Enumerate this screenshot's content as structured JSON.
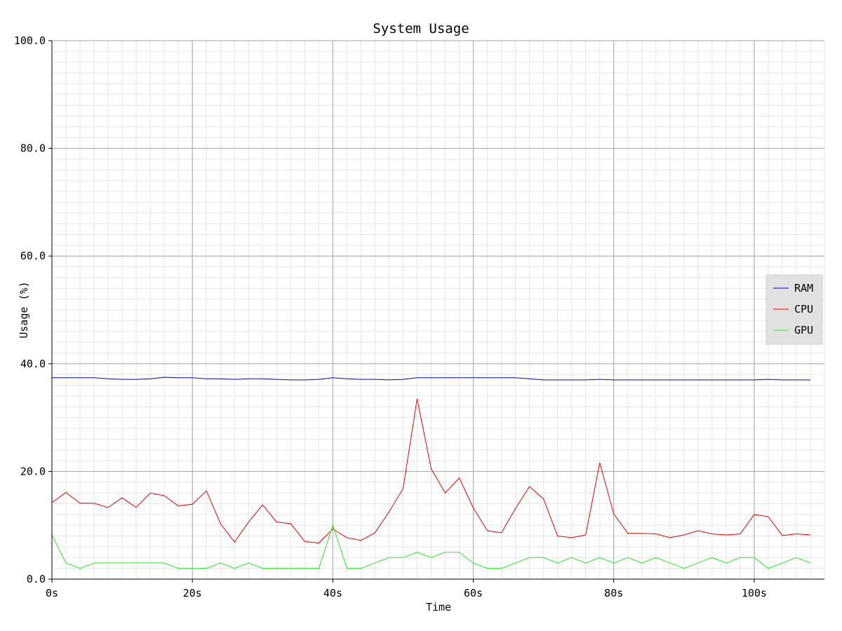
{
  "chart_data": {
    "type": "line",
    "title": "System Usage",
    "xlabel": "Time",
    "ylabel": "Usage (%)",
    "xlim": [
      0,
      110
    ],
    "ylim": [
      0,
      100
    ],
    "x_ticks": [
      0,
      20,
      40,
      60,
      80,
      100
    ],
    "x_tick_labels": [
      "0s",
      "20s",
      "40s",
      "60s",
      "80s",
      "100s"
    ],
    "y_ticks": [
      0,
      20,
      40,
      60,
      80,
      100
    ],
    "y_tick_labels": [
      "0.0",
      "20.0",
      "40.0",
      "60.0",
      "80.0",
      "100.0"
    ],
    "grid": true,
    "legend_position": "right",
    "x": [
      0,
      2,
      4,
      6,
      8,
      10,
      12,
      14,
      16,
      18,
      20,
      22,
      24,
      26,
      28,
      30,
      32,
      34,
      36,
      38,
      40,
      42,
      44,
      46,
      48,
      50,
      52,
      54,
      56,
      58,
      60,
      62,
      64,
      66,
      68,
      70,
      72,
      74,
      76,
      78,
      80,
      82,
      84,
      86,
      88,
      90,
      92,
      94,
      96,
      98,
      100,
      102,
      104,
      106,
      108
    ],
    "series": [
      {
        "name": "RAM",
        "color": "#0000cc",
        "values": [
          37.4,
          37.4,
          37.4,
          37.4,
          37.2,
          37.1,
          37.1,
          37.2,
          37.5,
          37.4,
          37.4,
          37.2,
          37.2,
          37.1,
          37.2,
          37.2,
          37.1,
          37.0,
          37.0,
          37.1,
          37.4,
          37.2,
          37.1,
          37.1,
          37.0,
          37.1,
          37.4,
          37.4,
          37.4,
          37.4,
          37.4,
          37.4,
          37.4,
          37.4,
          37.2,
          37.0,
          37.0,
          37.0,
          37.0,
          37.1,
          37.0,
          37.0,
          37.0,
          37.0,
          37.0,
          37.0,
          37.0,
          37.0,
          37.0,
          37.0,
          37.0,
          37.1,
          37.0,
          37.0,
          37.0
        ]
      },
      {
        "name": "CPU",
        "color": "#ee0000",
        "values": [
          14.2,
          16.1,
          14.1,
          14.1,
          13.3,
          15.1,
          13.3,
          16.0,
          15.5,
          13.6,
          13.9,
          16.4,
          10.3,
          6.9,
          10.6,
          13.8,
          10.6,
          10.3,
          7.0,
          6.7,
          9.3,
          7.7,
          7.2,
          8.6,
          12.5,
          16.8,
          33.5,
          20.5,
          16.0,
          18.8,
          13.2,
          9.0,
          8.6,
          13.1,
          17.2,
          14.9,
          8.0,
          7.7,
          8.2,
          21.6,
          12.1,
          8.5,
          8.5,
          8.4,
          7.7,
          8.2,
          9.0,
          8.4,
          8.2,
          8.4,
          12.0,
          11.6,
          8.1,
          8.4,
          8.2
        ]
      },
      {
        "name": "GPU",
        "color": "#22ee22",
        "values": [
          8.2,
          3.0,
          2.0,
          3.0,
          3.0,
          3.0,
          3.0,
          3.0,
          3.0,
          2.0,
          2.0,
          2.0,
          3.0,
          2.0,
          3.0,
          2.0,
          2.0,
          2.0,
          2.0,
          2.0,
          10.0,
          2.0,
          2.0,
          3.0,
          4.0,
          4.0,
          5.0,
          4.0,
          5.0,
          5.0,
          3.0,
          2.0,
          2.0,
          3.0,
          4.0,
          4.0,
          3.0,
          4.0,
          3.0,
          4.0,
          3.0,
          4.0,
          3.0,
          4.0,
          3.0,
          2.0,
          3.0,
          4.0,
          3.0,
          4.0,
          4.0,
          2.0,
          3.0,
          4.0,
          3.0
        ]
      }
    ]
  }
}
